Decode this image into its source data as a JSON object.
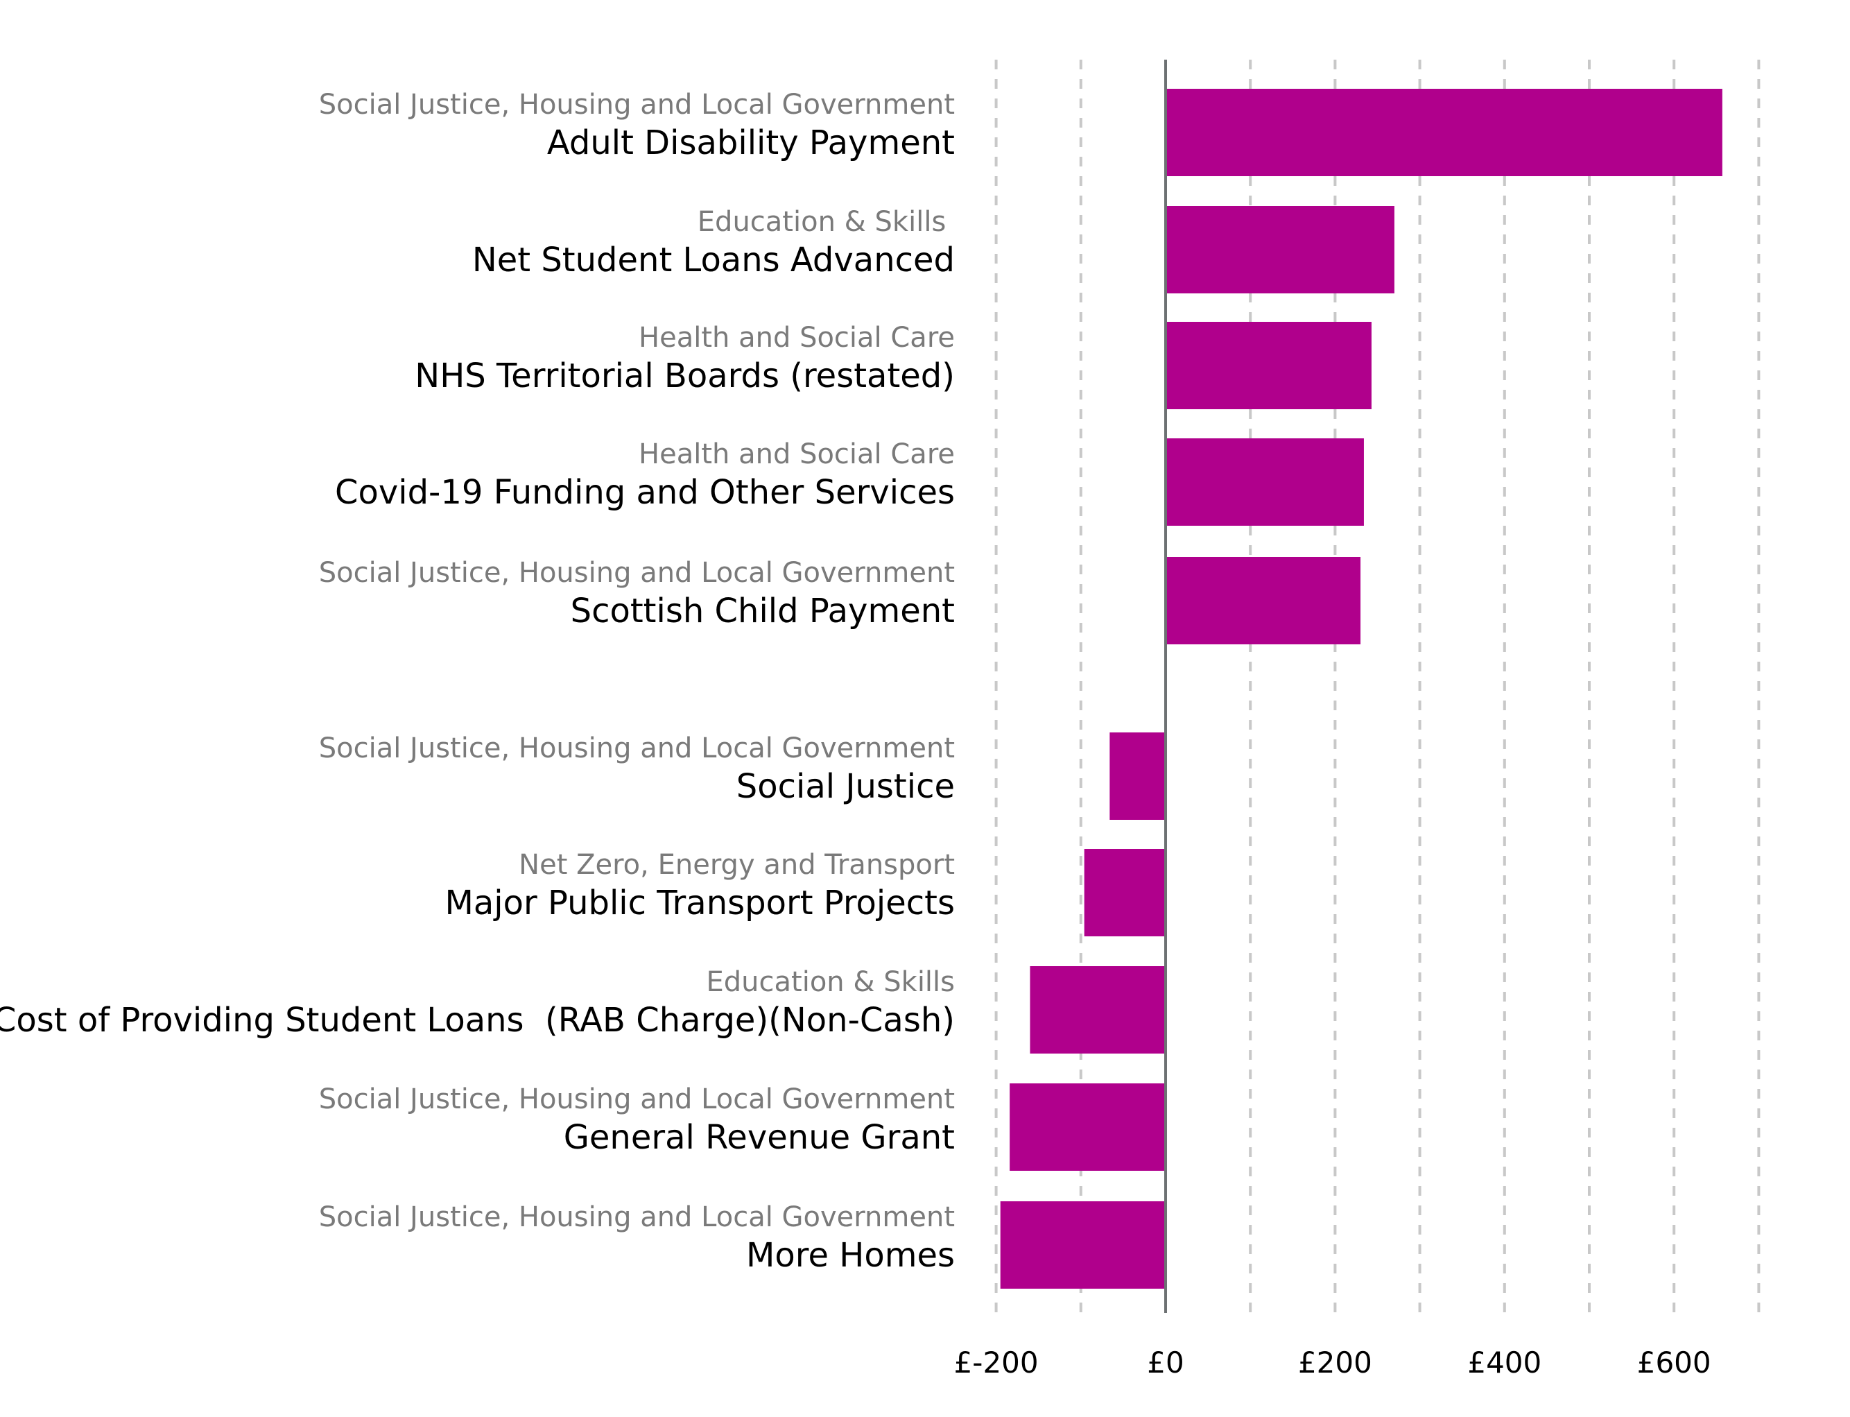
{
  "chart_data": {
    "type": "bar",
    "orientation": "horizontal",
    "bar_color": "#b0008c",
    "grid": true,
    "grid_style": "dashed vertical",
    "xlim": [
      -200,
      700
    ],
    "xticks": [
      -200,
      0,
      200,
      400,
      600
    ],
    "xtick_labels": [
      "£-200",
      "£0",
      "£200",
      "£400",
      "£600"
    ],
    "items": [
      {
        "group": "Social Justice, Housing and Local Government",
        "label": "Adult Disability Payment",
        "value": 657
      },
      {
        "group": "Education & Skills ",
        "label": "Net Student Loans Advanced",
        "value": 270
      },
      {
        "group": "Health and Social Care",
        "label": "NHS Territorial Boards (restated)",
        "value": 243
      },
      {
        "group": "Health and Social Care",
        "label": "Covid-19 Funding and Other Services",
        "value": 234
      },
      {
        "group": "Social Justice, Housing and Local Government",
        "label": "Scottish Child Payment",
        "value": 230
      },
      {
        "group": "Social Justice, Housing and Local Government",
        "label": "Social Justice",
        "value": -66
      },
      {
        "group": "Net Zero, Energy and Transport",
        "label": "Major Public Transport Projects",
        "value": -96
      },
      {
        "group": "Education & Skills",
        "label": "Cost of Providing Student Loans  (RAB Charge)(Non-Cash)",
        "value": -160
      },
      {
        "group": "Social Justice, Housing and Local Government",
        "label": "General Revenue Grant",
        "value": -184
      },
      {
        "group": "Social Justice, Housing and Local Government",
        "label": "More Homes",
        "value": -195
      }
    ]
  }
}
